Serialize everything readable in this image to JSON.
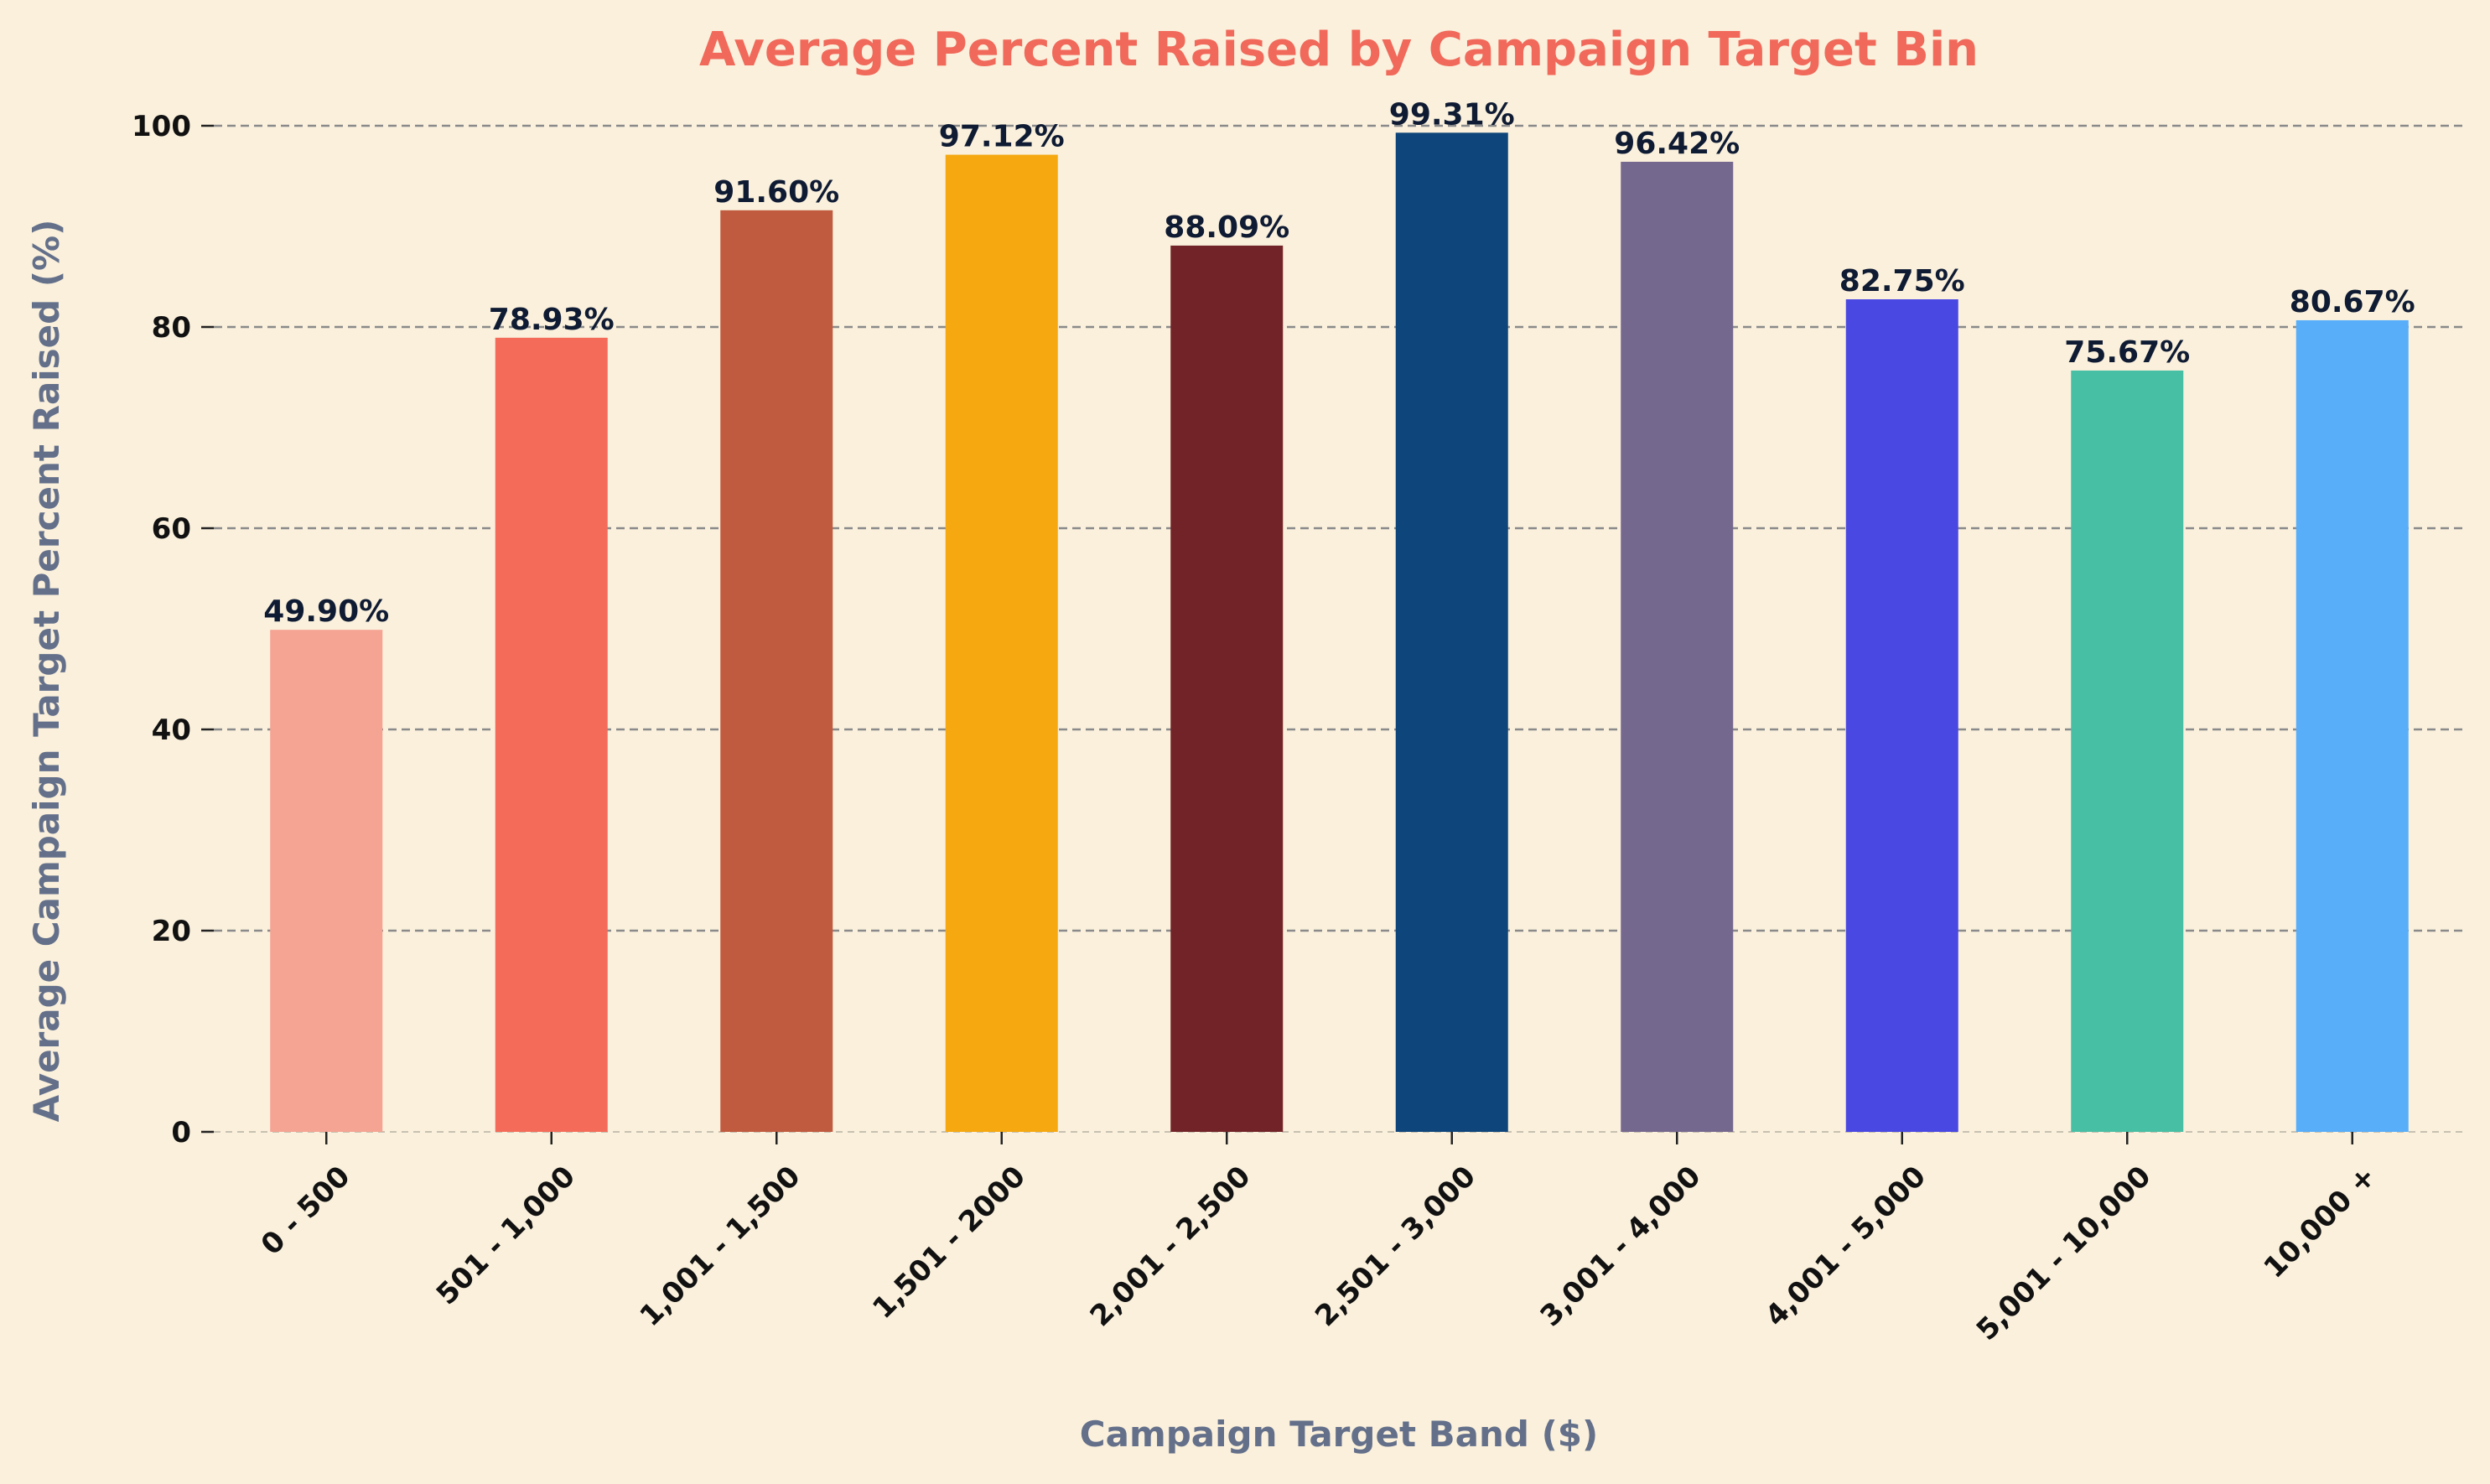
{
  "colors": {
    "background": "#faf0dc",
    "title": "#f0695a",
    "axis_label": "#64708a"
  },
  "chart_data": {
    "type": "bar",
    "title": "Average Percent Raised by Campaign Target Bin",
    "xlabel": "Campaign Target Band ($)",
    "ylabel": "Average Campaign Target Percent Raised (%)",
    "categories": [
      "0 - 500",
      "501 - 1,000",
      "1,001 - 1,500",
      "1,501 - 2000",
      "2,001 - 2,500",
      "2,501 - 3,000",
      "3,001 - 4,000",
      "4,001 - 5,000",
      "5,001 - 10,000",
      "10,000 +"
    ],
    "values": [
      49.9,
      78.93,
      91.6,
      97.12,
      88.09,
      99.31,
      96.42,
      82.75,
      75.67,
      80.67
    ],
    "data_labels": [
      "49.90%",
      "78.93%",
      "91.60%",
      "97.12%",
      "88.09%",
      "99.31%",
      "96.42%",
      "82.75%",
      "75.67%",
      "80.67%"
    ],
    "bar_colors": [
      "#f5a393",
      "#f56b5a",
      "#c05b3f",
      "#f5a80f",
      "#722327",
      "#0e457a",
      "#75688f",
      "#4a48e3",
      "#47bfa4",
      "#58aef9"
    ],
    "yticks": [
      0,
      20,
      40,
      60,
      80,
      100
    ],
    "ylim": [
      0,
      100
    ],
    "grid": true,
    "legend": "none"
  }
}
